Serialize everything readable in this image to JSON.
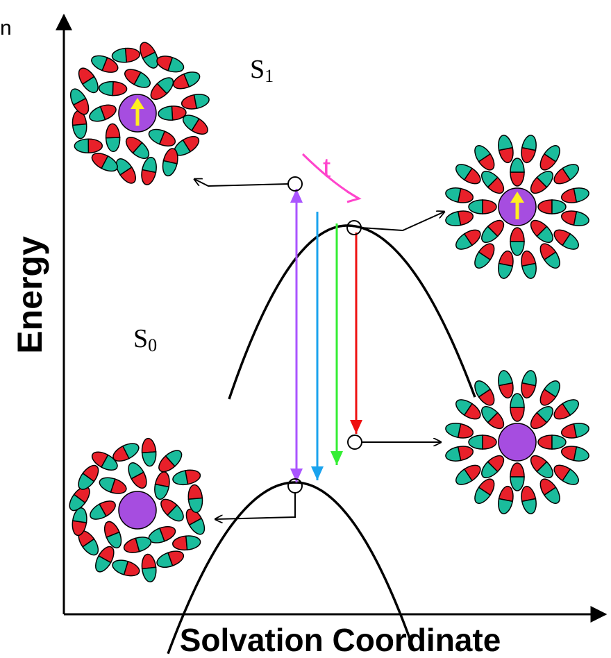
{
  "header": {
    "fragment": "n"
  },
  "axes": {
    "y_label": "Energy",
    "x_label": "Solvation Coordinate"
  },
  "curves": {
    "excited": {
      "base": "S",
      "sub": "1"
    },
    "ground": {
      "base": "S",
      "sub": "0"
    }
  },
  "annotation": {
    "time": "t"
  }
}
